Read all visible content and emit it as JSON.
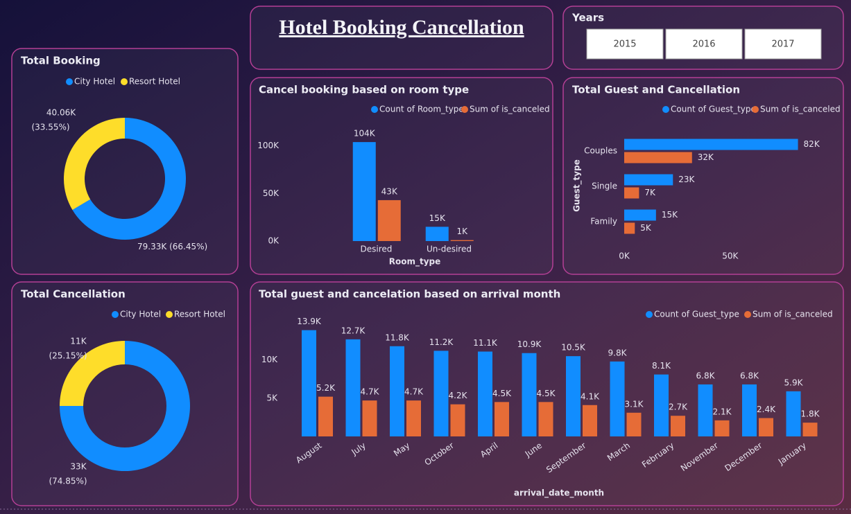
{
  "title": "Hotel Booking Cancellation",
  "slicer": {
    "title": "Years",
    "options": [
      "2015",
      "2016",
      "2017"
    ]
  },
  "chart_data": [
    {
      "type": "donut",
      "title": "Total Booking",
      "categories": [
        "City Hotel",
        "Resort Hotel"
      ],
      "values": [
        79330,
        40060
      ],
      "colors": [
        "#118DFF",
        "#FEDD2A"
      ],
      "value_labels": [
        "79.33K",
        "40.06K"
      ],
      "percent_labels": [
        "(66.45%)",
        "(33.55%)"
      ]
    },
    {
      "type": "bar",
      "title": "Cancel booking based on room type",
      "categories": [
        "Desired",
        "Un-desired"
      ],
      "series": [
        {
          "name": "Count of Room_type",
          "color": "#118DFF",
          "values": [
            104000,
            15000
          ],
          "value_labels": [
            "104K",
            "15K"
          ]
        },
        {
          "name": "Sum of is_canceled",
          "color": "#E66C37",
          "values": [
            43000,
            1000
          ],
          "value_labels": [
            "43K",
            "1K"
          ]
        }
      ],
      "ylim": [
        0,
        115000
      ],
      "yticks": [
        {
          "value": 0,
          "label": "0K"
        },
        {
          "value": 50000,
          "label": "50K"
        },
        {
          "value": 100000,
          "label": "100K"
        }
      ],
      "x_label": "Room_type"
    },
    {
      "type": "hbar",
      "title": "Total Guest and Cancellation",
      "categories": [
        "Couples",
        "Single",
        "Family"
      ],
      "series": [
        {
          "name": "Count of Guest_type",
          "color": "#118DFF",
          "values": [
            82000,
            23000,
            15000
          ],
          "value_labels": [
            "82K",
            "23K",
            "15K"
          ]
        },
        {
          "name": "Sum of is_canceled",
          "color": "#E66C37",
          "values": [
            32000,
            7000,
            5000
          ],
          "value_labels": [
            "32K",
            "7K",
            "5K"
          ]
        }
      ],
      "xlim": [
        0,
        90000
      ],
      "xticks": [
        {
          "value": 0,
          "label": "0K"
        },
        {
          "value": 50000,
          "label": "50K"
        }
      ],
      "y_label": "Guest_type"
    },
    {
      "type": "donut",
      "title": "Total Cancellation",
      "categories": [
        "City Hotel",
        "Resort Hotel"
      ],
      "values": [
        33000,
        11000
      ],
      "colors": [
        "#118DFF",
        "#FEDD2A"
      ],
      "value_labels": [
        "33K",
        "11K"
      ],
      "percent_labels": [
        "(74.85%)",
        "(25.15%)"
      ]
    },
    {
      "type": "bar",
      "title": "Total guest and cancelation based on arrival month",
      "categories": [
        "August",
        "July",
        "May",
        "October",
        "April",
        "June",
        "September",
        "March",
        "February",
        "November",
        "December",
        "January"
      ],
      "series": [
        {
          "name": "Count of Guest_type",
          "color": "#118DFF",
          "values": [
            13900,
            12700,
            11800,
            11200,
            11100,
            10900,
            10500,
            9800,
            8100,
            6800,
            6800,
            5900
          ],
          "value_labels": [
            "13.9K",
            "12.7K",
            "11.8K",
            "11.2K",
            "11.1K",
            "10.9K",
            "10.5K",
            "9.8K",
            "8.1K",
            "6.8K",
            "6.8K",
            "5.9K"
          ]
        },
        {
          "name": "Sum of is_canceled",
          "color": "#E66C37",
          "values": [
            5200,
            4700,
            4700,
            4200,
            4500,
            4500,
            4100,
            3100,
            2700,
            2100,
            2400,
            1800
          ],
          "value_labels": [
            "5.2K",
            "4.7K",
            "4.7K",
            "4.2K",
            "4.5K",
            "4.5K",
            "4.1K",
            "3.1K",
            "2.7K",
            "2.1K",
            "2.4K",
            "1.8K"
          ]
        }
      ],
      "ylim": [
        0,
        14500
      ],
      "yticks": [
        {
          "value": 5000,
          "label": "5K"
        },
        {
          "value": 10000,
          "label": "10K"
        }
      ],
      "x_label": "arrival_date_month"
    }
  ]
}
